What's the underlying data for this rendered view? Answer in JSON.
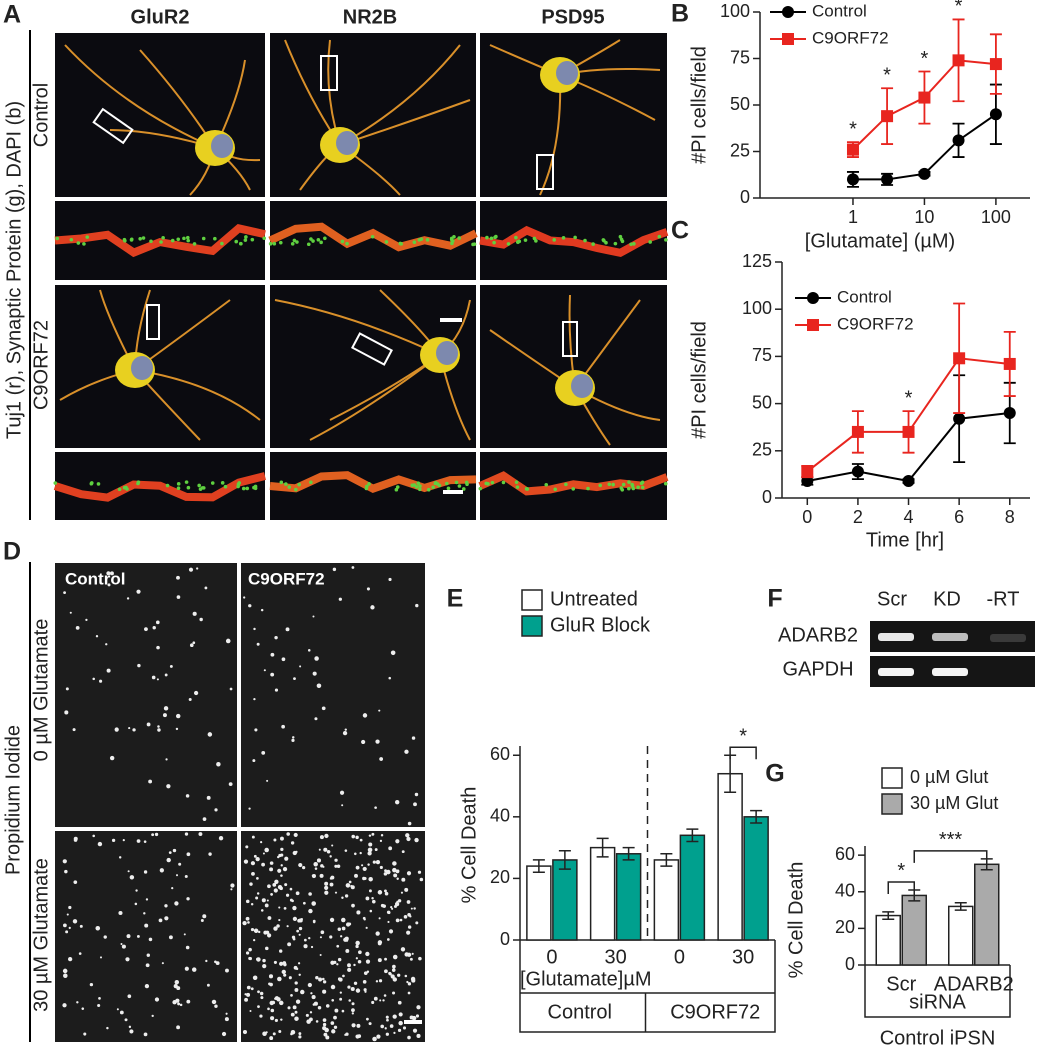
{
  "figure": {
    "panel_a": {
      "label": "A",
      "columns": [
        "GluR2",
        "NR2B",
        "PSD95"
      ],
      "rows": [
        "Control",
        "C9ORF72"
      ],
      "side_label": "Tuj1 (r), Synaptic Protein (g), DAPI (b)"
    },
    "panel_d": {
      "label": "D",
      "columns": [
        "Control",
        "C9ORF72"
      ],
      "rows": [
        "0 µM Glutamate",
        "30 µM Glutamate"
      ],
      "side_label": "Propidium Iodide"
    },
    "panel_f": {
      "label": "F",
      "columns": [
        "Scr",
        "KD",
        "-RT"
      ],
      "rows": [
        "ADARB2",
        "GAPDH"
      ]
    }
  },
  "chart_data": [
    {
      "label": "B",
      "type": "line",
      "x": [
        1,
        3,
        10,
        30,
        100
      ],
      "xscale": "log",
      "xlim": [
        0.05,
        300
      ],
      "xticks": [
        1,
        10,
        100
      ],
      "ylim": [
        0,
        100
      ],
      "yticks": [
        0,
        25,
        50,
        75,
        100
      ],
      "x_label": "[Glutamate] (µM)",
      "y_label": "#PI cells/field",
      "legend": "upper left",
      "series": [
        {
          "name": "Control",
          "color": "#000000",
          "marker": "circle",
          "values": [
            10,
            10,
            13,
            31,
            45
          ],
          "errors": [
            4,
            3,
            1,
            9,
            16
          ]
        },
        {
          "name": "C9ORF72",
          "color": "#e8251f",
          "marker": "square",
          "values": [
            26,
            44,
            54,
            74,
            72
          ],
          "errors": [
            4,
            15,
            14,
            22,
            16
          ]
        }
      ],
      "annotations": [
        {
          "x": 1,
          "text": "*"
        },
        {
          "x": 3,
          "text": "*"
        },
        {
          "x": 10,
          "text": "*"
        },
        {
          "x": 30,
          "text": "*"
        }
      ]
    },
    {
      "label": "C",
      "type": "line",
      "x": [
        0,
        2,
        4,
        6,
        8
      ],
      "xlim": [
        -1,
        8.8
      ],
      "xticks": [
        0,
        2,
        4,
        6,
        8
      ],
      "ylim": [
        0,
        125
      ],
      "yticks": [
        0,
        25,
        50,
        75,
        100,
        125
      ],
      "x_label": "Time [hr]",
      "y_label": "#PI cells/field",
      "legend": "upper left",
      "series": [
        {
          "name": "Control",
          "color": "#000000",
          "marker": "circle",
          "values": [
            9,
            14,
            9,
            42,
            45
          ],
          "errors": [
            2,
            4,
            1,
            23,
            16
          ]
        },
        {
          "name": "C9ORF72",
          "color": "#e8251f",
          "marker": "square",
          "values": [
            14,
            35,
            35,
            74,
            71
          ],
          "errors": [
            3,
            11,
            11,
            29,
            17
          ]
        }
      ],
      "annotations": [
        {
          "x": 4,
          "text": "*"
        }
      ]
    },
    {
      "label": "E",
      "type": "bar",
      "categories": [
        "0",
        "30",
        "0",
        "30"
      ],
      "groups": [
        "Control",
        "C9ORF72"
      ],
      "x_label": "[Glutamate]µM",
      "ylim": [
        0,
        63
      ],
      "yticks": [
        0,
        20,
        40,
        60
      ],
      "y_label": "% Cell Death",
      "legend": "upper left",
      "series": [
        {
          "name": "Untreated",
          "color": "#ffffff",
          "values": [
            24,
            30,
            26,
            54
          ],
          "errors": [
            2,
            3,
            2,
            6
          ]
        },
        {
          "name": "GluR Block",
          "color": "#00a08e",
          "values": [
            26,
            28,
            34,
            40
          ],
          "errors": [
            3,
            2,
            2,
            2
          ]
        }
      ],
      "annotations": [
        {
          "text": "*",
          "categories": [
            3
          ]
        }
      ]
    },
    {
      "label": "G",
      "type": "bar",
      "categories": [
        "Scr",
        "ADARB2"
      ],
      "x_label": "siRNA",
      "group_label": "Control iPSN",
      "ylim": [
        0,
        65
      ],
      "yticks": [
        0,
        20,
        40,
        60
      ],
      "y_label": "% Cell Death",
      "legend": "upper left",
      "series": [
        {
          "name": "0 µM Glut",
          "color": "#ffffff",
          "values": [
            27,
            32
          ],
          "errors": [
            2,
            2
          ]
        },
        {
          "name": "30 µM Glut",
          "color": "#aaaaaa",
          "values": [
            38,
            55
          ],
          "errors": [
            3,
            3
          ]
        }
      ],
      "annotations": [
        {
          "text": "*",
          "categories": [
            0
          ]
        },
        {
          "text": "***",
          "categories": [
            0,
            1
          ]
        }
      ]
    }
  ]
}
